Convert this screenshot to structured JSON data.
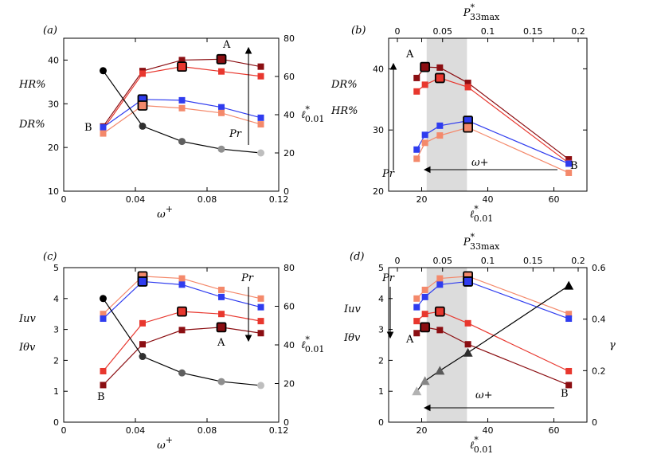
{
  "colors": {
    "dark": "#8b0e12",
    "red": "#e8372e",
    "blue": "#2f3cef",
    "salmon": "#f4896b",
    "black": "#000000",
    "gray": "#b3b3b3",
    "band": "#dcdcdc"
  },
  "panels": [
    {
      "id": "a",
      "tag": "(a)",
      "xaxis": {
        "label": "ω",
        "sup": "+",
        "min": 0,
        "max": 0.12,
        "ticks": [
          "0",
          "0.04",
          "0.08",
          "0.12"
        ],
        "tickvals": [
          0,
          0.04,
          0.08,
          0.12
        ]
      },
      "yleft": {
        "min": 10,
        "max": 45,
        "ticks": [
          "10",
          "20",
          "30",
          "40"
        ],
        "tickvals": [
          10,
          20,
          30,
          40
        ],
        "labels": [
          "HR%",
          "DR%"
        ]
      },
      "yright": {
        "min": 0,
        "max": 80,
        "ticks": [
          "0",
          "20",
          "40",
          "60",
          "80"
        ],
        "tickvals": [
          0,
          20,
          40,
          60,
          80
        ],
        "label": "ℓ",
        "sup": "*",
        "sub": "0.01"
      },
      "annotations": [
        "A",
        "B",
        "Pr"
      ],
      "series": [
        {
          "name": "HR% Pr=dark",
          "color": "dark",
          "axis": "left",
          "marker": "square",
          "x": [
            0.022,
            0.044,
            0.066,
            0.088,
            0.11
          ],
          "y": [
            24.8,
            37.5,
            40.0,
            40.2,
            38.5
          ]
        },
        {
          "name": "HR% Pr=red",
          "color": "red",
          "axis": "left",
          "marker": "square",
          "x": [
            0.022,
            0.044,
            0.066,
            0.088,
            0.11
          ],
          "y": [
            24.2,
            36.9,
            38.5,
            37.4,
            36.3
          ]
        },
        {
          "name": "DR% Pr=blue",
          "color": "blue",
          "axis": "left",
          "marker": "square",
          "x": [
            0.022,
            0.044,
            0.066,
            0.088,
            0.11
          ],
          "y": [
            24.6,
            31.0,
            30.8,
            29.2,
            26.8
          ]
        },
        {
          "name": "DR% Pr=salmon",
          "color": "salmon",
          "axis": "left",
          "marker": "square",
          "x": [
            0.022,
            0.044,
            0.066,
            0.088,
            0.11
          ],
          "y": [
            23.2,
            29.6,
            29.0,
            27.9,
            25.3
          ]
        },
        {
          "name": "l* gray",
          "color": "gray",
          "axis": "right",
          "marker": "circle",
          "gradient": true,
          "x": [
            0.022,
            0.044,
            0.066,
            0.088,
            0.11
          ],
          "y": [
            63,
            34,
            26,
            22,
            20
          ]
        }
      ],
      "outlined": [
        {
          "s": 0,
          "i": 3
        },
        {
          "s": 1,
          "i": 2
        },
        {
          "s": 2,
          "i": 1
        },
        {
          "s": 3,
          "i": 1
        }
      ]
    },
    {
      "id": "b",
      "tag": "(b)",
      "xaxis": {
        "label": "ℓ",
        "sup": "*",
        "sub": "0.01",
        "min": 10,
        "max": 70,
        "ticks": [
          "20",
          "40",
          "60"
        ],
        "tickvals": [
          20,
          40,
          60
        ]
      },
      "xtop": {
        "label": "P",
        "sup": "*",
        "sub": "33max",
        "min": 0,
        "max": 0.22,
        "ticks": [
          "0",
          "0.05",
          "0.1",
          "0.15",
          "0.2"
        ],
        "tickvals": [
          0,
          0.05,
          0.1,
          0.15,
          0.2
        ]
      },
      "yleft": {
        "min": 20,
        "max": 45,
        "ticks": [
          "20",
          "30",
          "40"
        ],
        "tickvals": [
          20,
          30,
          40
        ],
        "labels": [
          "DR%",
          "HR%"
        ]
      },
      "annotations": [
        "A",
        "B",
        "Pr",
        "ω+"
      ],
      "band": [
        21.5,
        33.7
      ],
      "series": [
        {
          "name": "dark",
          "color": "dark",
          "axis": "left",
          "marker": "square",
          "x": [
            18.5,
            21.0,
            25.5,
            34.0,
            64.5
          ],
          "y": [
            38.5,
            40.3,
            40.2,
            37.7,
            25.2
          ]
        },
        {
          "name": "red",
          "color": "red",
          "axis": "left",
          "marker": "square",
          "x": [
            18.5,
            21.0,
            25.5,
            34.0,
            64.5
          ],
          "y": [
            36.3,
            37.4,
            38.5,
            37.0,
            24.6
          ]
        },
        {
          "name": "blue",
          "color": "blue",
          "axis": "left",
          "marker": "square",
          "x": [
            18.5,
            21.0,
            25.5,
            34.0,
            64.5
          ],
          "y": [
            26.8,
            29.2,
            30.7,
            31.5,
            24.5
          ]
        },
        {
          "name": "salmon",
          "color": "salmon",
          "axis": "left",
          "marker": "square",
          "x": [
            18.5,
            21.0,
            25.5,
            34.0,
            64.5
          ],
          "y": [
            25.3,
            27.9,
            29.1,
            30.4,
            23.0
          ]
        }
      ],
      "outlined": [
        {
          "s": 0,
          "i": 1
        },
        {
          "s": 1,
          "i": 2
        },
        {
          "s": 2,
          "i": 3
        },
        {
          "s": 3,
          "i": 3
        }
      ]
    },
    {
      "id": "c",
      "tag": "(c)",
      "xaxis": {
        "label": "ω",
        "sup": "+",
        "min": 0,
        "max": 0.12,
        "ticks": [
          "0",
          "0.04",
          "0.08",
          "0.12"
        ],
        "tickvals": [
          0,
          0.04,
          0.08,
          0.12
        ]
      },
      "yleft": {
        "min": 0,
        "max": 5,
        "ticks": [
          "0",
          "1",
          "2",
          "3",
          "4",
          "5"
        ],
        "tickvals": [
          0,
          1,
          2,
          3,
          4,
          5
        ],
        "labels": [
          "Iuv",
          "Iθv"
        ]
      },
      "yright": {
        "min": 0,
        "max": 80,
        "ticks": [
          "0",
          "20",
          "40",
          "60",
          "80"
        ],
        "tickvals": [
          0,
          20,
          40,
          60,
          80
        ],
        "label": "ℓ",
        "sup": "*",
        "sub": "0.01"
      },
      "annotations": [
        "A",
        "B",
        "Pr"
      ],
      "series": [
        {
          "name": "salmon",
          "color": "salmon",
          "axis": "left",
          "marker": "square",
          "x": [
            0.022,
            0.044,
            0.066,
            0.088,
            0.11
          ],
          "y": [
            3.5,
            4.72,
            4.65,
            4.28,
            4.0
          ]
        },
        {
          "name": "blue",
          "color": "blue",
          "axis": "left",
          "marker": "square",
          "x": [
            0.022,
            0.044,
            0.066,
            0.088,
            0.11
          ],
          "y": [
            3.35,
            4.55,
            4.45,
            4.05,
            3.72
          ]
        },
        {
          "name": "red",
          "color": "red",
          "axis": "left",
          "marker": "square",
          "x": [
            0.022,
            0.044,
            0.066,
            0.088,
            0.11
          ],
          "y": [
            1.65,
            3.2,
            3.58,
            3.5,
            3.27
          ]
        },
        {
          "name": "dark",
          "color": "dark",
          "axis": "left",
          "marker": "square",
          "x": [
            0.022,
            0.044,
            0.066,
            0.088,
            0.11
          ],
          "y": [
            1.2,
            2.52,
            2.98,
            3.07,
            2.88
          ]
        },
        {
          "name": "l* gray",
          "color": "gray",
          "axis": "right",
          "marker": "circle",
          "gradient": true,
          "x": [
            0.022,
            0.044,
            0.066,
            0.088,
            0.11
          ],
          "y": [
            64,
            34,
            25.5,
            21,
            19
          ]
        }
      ],
      "outlined": [
        {
          "s": 0,
          "i": 1
        },
        {
          "s": 1,
          "i": 1
        },
        {
          "s": 2,
          "i": 2
        },
        {
          "s": 3,
          "i": 3
        }
      ]
    },
    {
      "id": "d",
      "tag": "(d)",
      "xaxis": {
        "label": "ℓ",
        "sup": "*",
        "sub": "0.01",
        "min": 10,
        "max": 70,
        "ticks": [
          "20",
          "40",
          "60"
        ],
        "tickvals": [
          20,
          40,
          60
        ]
      },
      "xtop": {
        "label": "P",
        "sup": "*",
        "sub": "33max",
        "min": 0,
        "max": 0.22,
        "ticks": [
          "0",
          "0.05",
          "0.1",
          "0.15",
          "0.2"
        ],
        "tickvals": [
          0,
          0.05,
          0.1,
          0.15,
          0.2
        ]
      },
      "yleft": {
        "min": 0,
        "max": 5,
        "ticks": [
          "0",
          "1",
          "2",
          "3",
          "4",
          "5"
        ],
        "tickvals": [
          0,
          1,
          2,
          3,
          4,
          5
        ],
        "labels": [
          "Iuv",
          "Iθv"
        ]
      },
      "yright": {
        "min": 0,
        "max": 0.6,
        "ticks": [
          "0",
          "0.2",
          "0.4",
          "0.6"
        ],
        "tickvals": [
          0,
          0.2,
          0.4,
          0.6
        ],
        "label": "γ"
      },
      "annotations": [
        "A",
        "B",
        "Pr",
        "ω+"
      ],
      "band": [
        21.5,
        33.7
      ],
      "series": [
        {
          "name": "salmon",
          "color": "salmon",
          "axis": "left",
          "marker": "square",
          "x": [
            18.5,
            21.0,
            25.5,
            34.0,
            64.5
          ],
          "y": [
            4.0,
            4.28,
            4.65,
            4.72,
            3.5
          ]
        },
        {
          "name": "blue",
          "color": "blue",
          "axis": "left",
          "marker": "square",
          "x": [
            18.5,
            21.0,
            25.5,
            34.0,
            64.5
          ],
          "y": [
            3.72,
            4.05,
            4.45,
            4.55,
            3.35
          ]
        },
        {
          "name": "red",
          "color": "red",
          "axis": "left",
          "marker": "square",
          "x": [
            18.5,
            21.0,
            25.5,
            34.0,
            64.5
          ],
          "y": [
            3.27,
            3.5,
            3.58,
            3.2,
            1.65
          ]
        },
        {
          "name": "dark",
          "color": "dark",
          "axis": "left",
          "marker": "square",
          "x": [
            18.5,
            21.0,
            25.5,
            34.0,
            64.5
          ],
          "y": [
            2.88,
            3.07,
            2.98,
            2.52,
            1.2
          ]
        },
        {
          "name": "gamma",
          "color": "gray",
          "axis": "right",
          "marker": "triangle",
          "gradient": true,
          "x": [
            18.5,
            21.0,
            25.5,
            34.0,
            64.5
          ],
          "y": [
            0.12,
            0.16,
            0.2,
            0.27,
            0.53
          ]
        }
      ],
      "outlined": [
        {
          "s": 0,
          "i": 3
        },
        {
          "s": 1,
          "i": 3
        },
        {
          "s": 2,
          "i": 2
        },
        {
          "s": 3,
          "i": 1
        }
      ]
    }
  ],
  "chart_data": [
    {
      "type": "line",
      "panel": "(a)",
      "xlabel": "ω+",
      "ylabel": "HR% / DR%",
      "y2label": "ℓ*0.01",
      "xlim": [
        0,
        0.12
      ],
      "ylim": [
        10,
        45
      ],
      "y2lim": [
        0,
        80
      ],
      "x": [
        0.022,
        0.044,
        0.066,
        0.088,
        0.11
      ],
      "series": [
        {
          "name": "HR% dark",
          "values": [
            24.8,
            37.5,
            40.0,
            40.2,
            38.5
          ]
        },
        {
          "name": "HR% red",
          "values": [
            24.2,
            36.9,
            38.5,
            37.4,
            36.3
          ]
        },
        {
          "name": "DR% blue",
          "values": [
            24.6,
            31.0,
            30.8,
            29.2,
            26.8
          ]
        },
        {
          "name": "DR% salmon",
          "values": [
            23.2,
            29.6,
            29.0,
            27.9,
            25.3
          ]
        },
        {
          "name": "ℓ*0.01",
          "values": [
            63,
            34,
            26,
            22,
            20
          ]
        }
      ]
    },
    {
      "type": "line",
      "panel": "(b)",
      "xlabel": "ℓ*0.01",
      "x2label": "P*33max",
      "ylabel": "DR% / HR%",
      "xlim": [
        10,
        70
      ],
      "ylim": [
        20,
        45
      ],
      "x": [
        18.5,
        21.0,
        25.5,
        34.0,
        64.5
      ],
      "series": [
        {
          "name": "dark",
          "values": [
            38.5,
            40.3,
            40.2,
            37.7,
            25.2
          ]
        },
        {
          "name": "red",
          "values": [
            36.3,
            37.4,
            38.5,
            37.0,
            24.6
          ]
        },
        {
          "name": "blue",
          "values": [
            26.8,
            29.2,
            30.7,
            31.5,
            24.5
          ]
        },
        {
          "name": "salmon",
          "values": [
            25.3,
            27.9,
            29.1,
            30.4,
            23.0
          ]
        }
      ]
    },
    {
      "type": "line",
      "panel": "(c)",
      "xlabel": "ω+",
      "ylabel": "Iuv / Iθv",
      "y2label": "ℓ*0.01",
      "xlim": [
        0,
        0.12
      ],
      "ylim": [
        0,
        5
      ],
      "y2lim": [
        0,
        80
      ],
      "x": [
        0.022,
        0.044,
        0.066,
        0.088,
        0.11
      ],
      "series": [
        {
          "name": "salmon",
          "values": [
            3.5,
            4.72,
            4.65,
            4.28,
            4.0
          ]
        },
        {
          "name": "blue",
          "values": [
            3.35,
            4.55,
            4.45,
            4.05,
            3.72
          ]
        },
        {
          "name": "red",
          "values": [
            1.65,
            3.2,
            3.58,
            3.5,
            3.27
          ]
        },
        {
          "name": "dark",
          "values": [
            1.2,
            2.52,
            2.98,
            3.07,
            2.88
          ]
        },
        {
          "name": "ℓ*0.01",
          "values": [
            64,
            34,
            25.5,
            21,
            19
          ]
        }
      ]
    },
    {
      "type": "line",
      "panel": "(d)",
      "xlabel": "ℓ*0.01",
      "x2label": "P*33max",
      "ylabel": "Iuv / Iθv",
      "y2label": "γ",
      "xlim": [
        10,
        70
      ],
      "ylim": [
        0,
        5
      ],
      "y2lim": [
        0,
        0.6
      ],
      "x": [
        18.5,
        21.0,
        25.5,
        34.0,
        64.5
      ],
      "series": [
        {
          "name": "salmon",
          "values": [
            4.0,
            4.28,
            4.65,
            4.72,
            3.5
          ]
        },
        {
          "name": "blue",
          "values": [
            3.72,
            4.05,
            4.45,
            4.55,
            3.35
          ]
        },
        {
          "name": "red",
          "values": [
            3.27,
            3.5,
            3.58,
            3.2,
            1.65
          ]
        },
        {
          "name": "dark",
          "values": [
            2.88,
            3.07,
            2.98,
            2.52,
            1.2
          ]
        },
        {
          "name": "γ",
          "values": [
            0.12,
            0.16,
            0.2,
            0.27,
            0.53
          ]
        }
      ]
    }
  ]
}
